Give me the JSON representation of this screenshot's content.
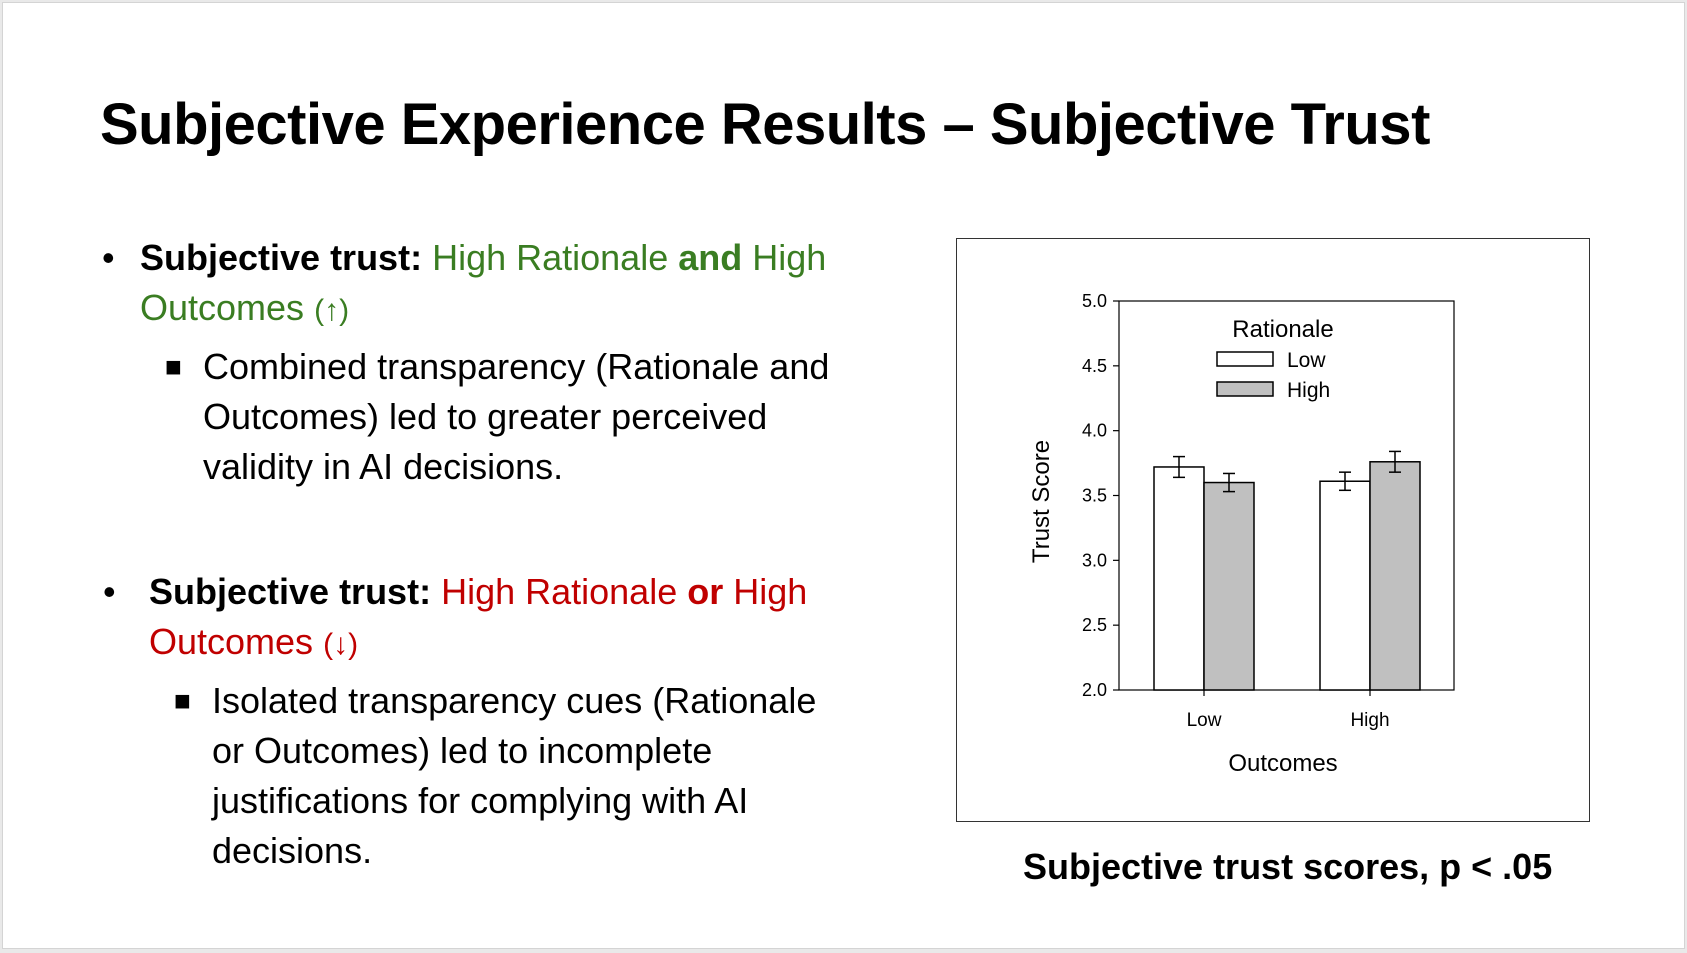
{
  "title": "Subjective Experience Results – Subjective Trust",
  "bullets": [
    {
      "label": "Subjective trust:",
      "part1": "High Rationale",
      "conj": "and",
      "part2a": "High",
      "part2b": "Outcomes",
      "arrow": "(↑)",
      "color": "#3a7d22",
      "sub_lines": [
        "Combined transparency (Rationale and",
        "Outcomes) led to greater perceived",
        "validity in AI decisions."
      ]
    },
    {
      "label": "Subjective trust:",
      "part1": "High Rationale",
      "conj": "or",
      "part2a": "High",
      "part2b": "Outcomes",
      "arrow": "(↓)",
      "color": "#c00000",
      "sub_lines": [
        "Isolated transparency cues (Rationale",
        "or Outcomes) led to incomplete",
        "justifications for complying with AI",
        "decisions."
      ]
    }
  ],
  "caption": "Subjective trust scores, p < .05",
  "chart_data": {
    "type": "bar",
    "categories": [
      "Low",
      "High"
    ],
    "xlabel": "Outcomes",
    "ylabel": "Trust Score",
    "ylim": [
      2.0,
      5.0
    ],
    "yticks": [
      "2.0",
      "2.5",
      "3.0",
      "3.5",
      "4.0",
      "4.5",
      "5.0"
    ],
    "legend_title": "Rationale",
    "legend_position": "top",
    "grid": false,
    "series": [
      {
        "name": "Low",
        "values": [
          3.72,
          3.61
        ],
        "errors": [
          0.08,
          0.07
        ],
        "color": "#ffffff"
      },
      {
        "name": "High",
        "values": [
          3.6,
          3.76
        ],
        "errors": [
          0.07,
          0.08
        ],
        "color": "#c0c0c0"
      }
    ]
  }
}
